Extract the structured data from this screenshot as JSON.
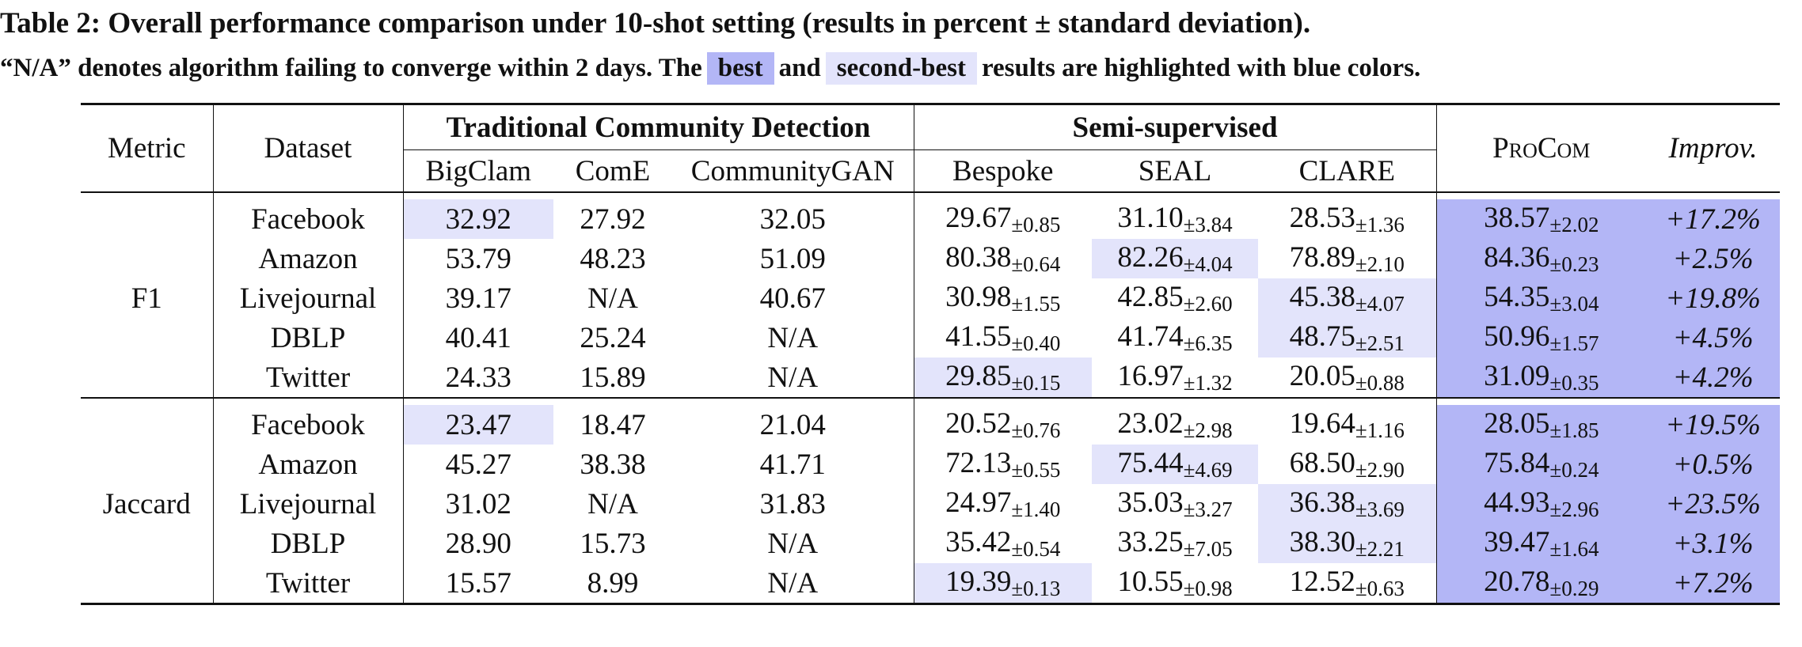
{
  "caption": {
    "title": "Table 2: Overall performance comparison under 10-shot setting (results in percent ± standard deviation).",
    "sub_before": "“N/A” denotes algorithm failing to converge within 2 days. The",
    "best": "best",
    "and": "and",
    "second": "second-best",
    "sub_after": "results are highlighted with blue colors."
  },
  "header": {
    "metric": "Metric",
    "dataset": "Dataset",
    "group_traditional": "Traditional Community Detection",
    "group_semi": "Semi-supervised",
    "procom": "ProCom",
    "improv": "Improv.",
    "methods": [
      "BigClam",
      "ComE",
      "CommunityGAN",
      "Bespoke",
      "SEAL",
      "CLARE"
    ]
  },
  "sections": [
    {
      "metric": "F1",
      "rows": [
        {
          "dataset": "Facebook",
          "cells": [
            {
              "v": "32.92",
              "s": "",
              "h": "second"
            },
            {
              "v": "27.92",
              "s": "",
              "h": ""
            },
            {
              "v": "32.05",
              "s": "",
              "h": ""
            },
            {
              "v": "29.67",
              "s": "±0.85",
              "h": ""
            },
            {
              "v": "31.10",
              "s": "±3.84",
              "h": ""
            },
            {
              "v": "28.53",
              "s": "±1.36",
              "h": ""
            },
            {
              "v": "38.57",
              "s": "±2.02",
              "h": "best"
            }
          ],
          "improv": "+17.2%"
        },
        {
          "dataset": "Amazon",
          "cells": [
            {
              "v": "53.79",
              "s": "",
              "h": ""
            },
            {
              "v": "48.23",
              "s": "",
              "h": ""
            },
            {
              "v": "51.09",
              "s": "",
              "h": ""
            },
            {
              "v": "80.38",
              "s": "±0.64",
              "h": ""
            },
            {
              "v": "82.26",
              "s": "±4.04",
              "h": "second"
            },
            {
              "v": "78.89",
              "s": "±2.10",
              "h": ""
            },
            {
              "v": "84.36",
              "s": "±0.23",
              "h": "best"
            }
          ],
          "improv": "+2.5%"
        },
        {
          "dataset": "Livejournal",
          "cells": [
            {
              "v": "39.17",
              "s": "",
              "h": ""
            },
            {
              "v": "N/A",
              "s": "",
              "h": ""
            },
            {
              "v": "40.67",
              "s": "",
              "h": ""
            },
            {
              "v": "30.98",
              "s": "±1.55",
              "h": ""
            },
            {
              "v": "42.85",
              "s": "±2.60",
              "h": ""
            },
            {
              "v": "45.38",
              "s": "±4.07",
              "h": "second"
            },
            {
              "v": "54.35",
              "s": "±3.04",
              "h": "best"
            }
          ],
          "improv": "+19.8%"
        },
        {
          "dataset": "DBLP",
          "cells": [
            {
              "v": "40.41",
              "s": "",
              "h": ""
            },
            {
              "v": "25.24",
              "s": "",
              "h": ""
            },
            {
              "v": "N/A",
              "s": "",
              "h": ""
            },
            {
              "v": "41.55",
              "s": "±0.40",
              "h": ""
            },
            {
              "v": "41.74",
              "s": "±6.35",
              "h": ""
            },
            {
              "v": "48.75",
              "s": "±2.51",
              "h": "second"
            },
            {
              "v": "50.96",
              "s": "±1.57",
              "h": "best"
            }
          ],
          "improv": "+4.5%"
        },
        {
          "dataset": "Twitter",
          "cells": [
            {
              "v": "24.33",
              "s": "",
              "h": ""
            },
            {
              "v": "15.89",
              "s": "",
              "h": ""
            },
            {
              "v": "N/A",
              "s": "",
              "h": ""
            },
            {
              "v": "29.85",
              "s": "±0.15",
              "h": "second"
            },
            {
              "v": "16.97",
              "s": "±1.32",
              "h": ""
            },
            {
              "v": "20.05",
              "s": "±0.88",
              "h": ""
            },
            {
              "v": "31.09",
              "s": "±0.35",
              "h": "best"
            }
          ],
          "improv": "+4.2%"
        }
      ]
    },
    {
      "metric": "Jaccard",
      "rows": [
        {
          "dataset": "Facebook",
          "cells": [
            {
              "v": "23.47",
              "s": "",
              "h": "second"
            },
            {
              "v": "18.47",
              "s": "",
              "h": ""
            },
            {
              "v": "21.04",
              "s": "",
              "h": ""
            },
            {
              "v": "20.52",
              "s": "±0.76",
              "h": ""
            },
            {
              "v": "23.02",
              "s": "±2.98",
              "h": ""
            },
            {
              "v": "19.64",
              "s": "±1.16",
              "h": ""
            },
            {
              "v": "28.05",
              "s": "±1.85",
              "h": "best"
            }
          ],
          "improv": "+19.5%"
        },
        {
          "dataset": "Amazon",
          "cells": [
            {
              "v": "45.27",
              "s": "",
              "h": ""
            },
            {
              "v": "38.38",
              "s": "",
              "h": ""
            },
            {
              "v": "41.71",
              "s": "",
              "h": ""
            },
            {
              "v": "72.13",
              "s": "±0.55",
              "h": ""
            },
            {
              "v": "75.44",
              "s": "±4.69",
              "h": "second"
            },
            {
              "v": "68.50",
              "s": "±2.90",
              "h": ""
            },
            {
              "v": "75.84",
              "s": "±0.24",
              "h": "best"
            }
          ],
          "improv": "+0.5%"
        },
        {
          "dataset": "Livejournal",
          "cells": [
            {
              "v": "31.02",
              "s": "",
              "h": ""
            },
            {
              "v": "N/A",
              "s": "",
              "h": ""
            },
            {
              "v": "31.83",
              "s": "",
              "h": ""
            },
            {
              "v": "24.97",
              "s": "±1.40",
              "h": ""
            },
            {
              "v": "35.03",
              "s": "±3.27",
              "h": ""
            },
            {
              "v": "36.38",
              "s": "±3.69",
              "h": "second"
            },
            {
              "v": "44.93",
              "s": "±2.96",
              "h": "best"
            }
          ],
          "improv": "+23.5%"
        },
        {
          "dataset": "DBLP",
          "cells": [
            {
              "v": "28.90",
              "s": "",
              "h": ""
            },
            {
              "v": "15.73",
              "s": "",
              "h": ""
            },
            {
              "v": "N/A",
              "s": "",
              "h": ""
            },
            {
              "v": "35.42",
              "s": "±0.54",
              "h": ""
            },
            {
              "v": "33.25",
              "s": "±7.05",
              "h": ""
            },
            {
              "v": "38.30",
              "s": "±2.21",
              "h": "second"
            },
            {
              "v": "39.47",
              "s": "±1.64",
              "h": "best"
            }
          ],
          "improv": "+3.1%"
        },
        {
          "dataset": "Twitter",
          "cells": [
            {
              "v": "15.57",
              "s": "",
              "h": ""
            },
            {
              "v": "8.99",
              "s": "",
              "h": ""
            },
            {
              "v": "N/A",
              "s": "",
              "h": ""
            },
            {
              "v": "19.39",
              "s": "±0.13",
              "h": "second"
            },
            {
              "v": "10.55",
              "s": "±0.98",
              "h": ""
            },
            {
              "v": "12.52",
              "s": "±0.63",
              "h": ""
            },
            {
              "v": "20.78",
              "s": "±0.29",
              "h": "best"
            }
          ],
          "improv": "+7.2%"
        }
      ]
    }
  ],
  "colors": {
    "best": "#b3b6f6",
    "second_best": "#e3e4fb"
  }
}
